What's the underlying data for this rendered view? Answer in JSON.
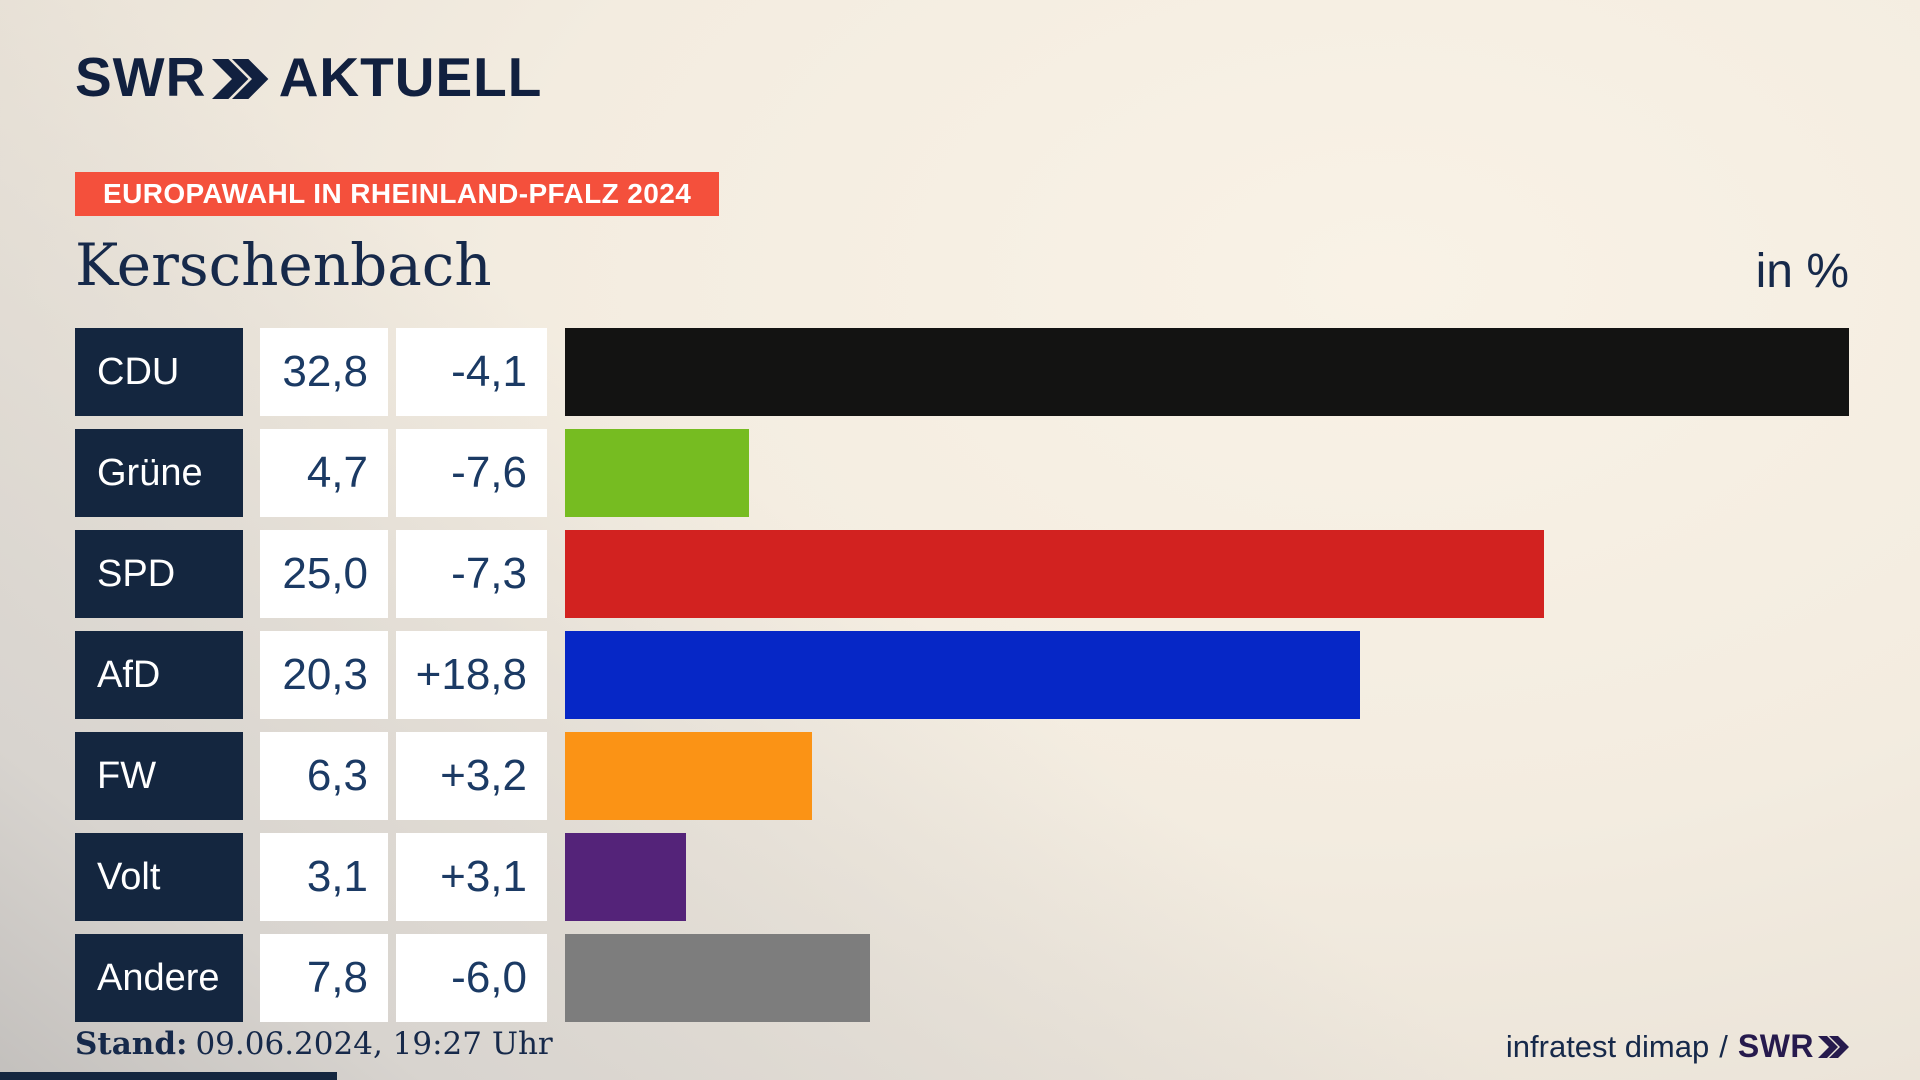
{
  "header": {
    "logo": {
      "swr": "SWR",
      "chevron_icon": "double-chevron-right",
      "brand_suffix": "AKTUELL"
    },
    "banner": "EUROPAWAHL IN RHEINLAND-PFALZ 2024",
    "title": "Kerschenbach",
    "unit_label": "in %"
  },
  "chart_data": {
    "type": "bar",
    "orientation": "horizontal",
    "title": "Kerschenbach",
    "unit": "%",
    "number_format": "de-DE (comma decimal)",
    "bar_scale_max": 32.8,
    "categories": [
      "CDU",
      "Grüne",
      "SPD",
      "AfD",
      "FW",
      "Volt",
      "Andere"
    ],
    "series": [
      {
        "party": "CDU",
        "value": 32.8,
        "value_label": "32,8",
        "change": -4.1,
        "change_label": "-4,1",
        "color": "#131312"
      },
      {
        "party": "Grüne",
        "value": 4.7,
        "value_label": "4,7",
        "change": -7.6,
        "change_label": "-7,6",
        "color": "#76bc21"
      },
      {
        "party": "SPD",
        "value": 25.0,
        "value_label": "25,0",
        "change": -7.3,
        "change_label": "-7,3",
        "color": "#d22220"
      },
      {
        "party": "AfD",
        "value": 20.3,
        "value_label": "20,3",
        "change": 18.8,
        "change_label": "+18,8",
        "color": "#0627c6"
      },
      {
        "party": "FW",
        "value": 6.3,
        "value_label": "6,3",
        "change": 3.2,
        "change_label": "+3,2",
        "color": "#fb9315"
      },
      {
        "party": "Volt",
        "value": 3.1,
        "value_label": "3,1",
        "change": 3.1,
        "change_label": "+3,1",
        "color": "#542379"
      },
      {
        "party": "Andere",
        "value": 7.8,
        "value_label": "7,8",
        "change": -6.0,
        "change_label": "-6,0",
        "color": "#7d7d7d"
      }
    ],
    "legend": "none",
    "grid": "off"
  },
  "footer": {
    "stand_label": "Stand:",
    "stand_value": "09.06.2024, 19:27 Uhr",
    "source": "infratest dimap",
    "separator": "/",
    "source_logo": {
      "swr": "SWR",
      "chevron_icon": "double-chevron-right"
    }
  },
  "colors": {
    "navy": "#14263f",
    "banner": "#f4503c",
    "text": "#16294a",
    "digits": "#1b3a64",
    "logo": "#11203f",
    "swr-footer": "#261a4d",
    "bg-cream": "#f3ece0",
    "bg-gray": "#c3c0bd",
    "white": "#ffffff"
  }
}
